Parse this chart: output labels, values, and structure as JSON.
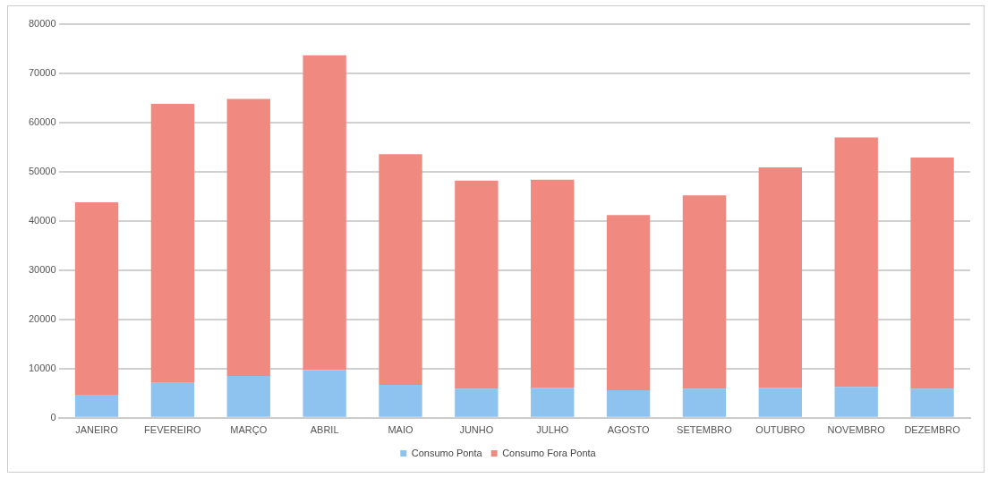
{
  "chart_data": {
    "type": "bar",
    "stacked": true,
    "categories": [
      "JANEIRO",
      "FEVEREIRO",
      "MARÇO",
      "ABRIL",
      "MAIO",
      "JUNHO",
      "JULHO",
      "AGOSTO",
      "SETEMBRO",
      "OUTUBRO",
      "NOVEMBRO",
      "DEZEMBRO"
    ],
    "series": [
      {
        "name": "Consumo Ponta",
        "color": "#8ec3ef",
        "values": [
          4700,
          7100,
          8500,
          9700,
          6700,
          5900,
          6100,
          5600,
          5900,
          6100,
          6300,
          5900
        ]
      },
      {
        "name": "Consumo Fora Ponta",
        "color": "#f08a80",
        "values": [
          39100,
          56700,
          56300,
          64000,
          46900,
          42300,
          42300,
          35600,
          39300,
          44800,
          50700,
          47000
        ]
      }
    ],
    "ylim": [
      0,
      80000
    ],
    "yticks": [
      0,
      10000,
      20000,
      30000,
      40000,
      50000,
      60000,
      70000,
      80000
    ],
    "grid": "y",
    "legend": "bottom"
  }
}
